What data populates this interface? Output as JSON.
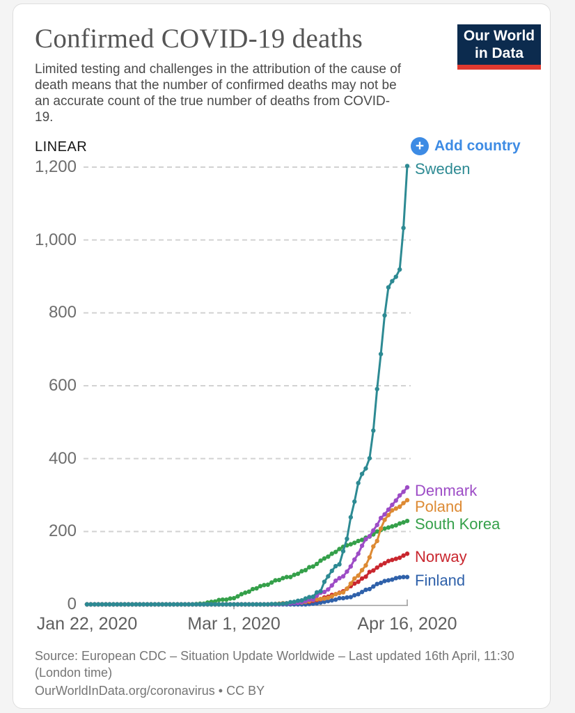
{
  "header": {
    "title": "Confirmed COVID-19 deaths",
    "subtitle": "Limited testing and challenges in the attribution of the cause of death means that the number of confirmed deaths may not be an accurate count of the true number of deaths from COVID-19.",
    "logo": {
      "line1": "Our World",
      "line2": "in Data",
      "navy_color": "#0c2b4e",
      "red_color": "#e0392f"
    }
  },
  "controls": {
    "scale_label": "LINEAR",
    "add_country_label": "Add country",
    "plus_icon": "+",
    "accent_color": "#3d8be4"
  },
  "chart_data": {
    "type": "line",
    "title": "Confirmed COVID-19 deaths",
    "xlabel": "",
    "ylabel": "",
    "x_start_date": "Jan 22, 2020",
    "x_end_date": "Apr 16, 2020",
    "x_tick_labels": [
      "Jan 22, 2020",
      "Mar 1, 2020",
      "Apr 16, 2020"
    ],
    "x_tick_days": [
      0,
      39,
      85
    ],
    "days_total": 85,
    "ylim": [
      0,
      1200
    ],
    "y_ticks": [
      0,
      200,
      400,
      600,
      800,
      1000,
      1200
    ],
    "y_tick_labels": [
      "0",
      "200",
      "400",
      "600",
      "800",
      "1,000",
      "1,200"
    ],
    "grid": true,
    "gridline_color": "#d2d2d2",
    "axis_color": "#9a9a9a",
    "legend_position": "right-end-labels",
    "series": [
      {
        "name": "Sweden",
        "color": "#2d8a93",
        "final_value": 1203,
        "values": [
          0,
          0,
          0,
          0,
          0,
          0,
          0,
          0,
          0,
          0,
          0,
          0,
          0,
          0,
          0,
          0,
          0,
          0,
          0,
          0,
          0,
          0,
          0,
          0,
          0,
          0,
          0,
          0,
          0,
          0,
          0,
          0,
          0,
          0,
          0,
          0,
          0,
          0,
          0,
          0,
          0,
          0,
          0,
          0,
          0,
          0,
          0,
          0,
          0,
          1,
          1,
          1,
          2,
          3,
          6,
          7,
          10,
          11,
          16,
          20,
          21,
          33,
          36,
          62,
          77,
          92,
          105,
          110,
          146,
          180,
          239,
          282,
          333,
          358,
          373,
          401,
          477,
          591,
          687,
          793,
          870,
          887,
          899,
          919,
          1033,
          1203
        ]
      },
      {
        "name": "Denmark",
        "color": "#9d4cc6",
        "final_value": 321,
        "values": [
          0,
          0,
          0,
          0,
          0,
          0,
          0,
          0,
          0,
          0,
          0,
          0,
          0,
          0,
          0,
          0,
          0,
          0,
          0,
          0,
          0,
          0,
          0,
          0,
          0,
          0,
          0,
          0,
          0,
          0,
          0,
          0,
          0,
          0,
          0,
          0,
          0,
          0,
          0,
          0,
          0,
          0,
          0,
          0,
          0,
          0,
          0,
          0,
          0,
          0,
          0,
          0,
          1,
          2,
          3,
          4,
          4,
          6,
          9,
          13,
          13,
          24,
          32,
          34,
          41,
          52,
          65,
          72,
          77,
          90,
          104,
          123,
          139,
          161,
          179,
          187,
          203,
          218,
          237,
          247,
          260,
          273,
          285,
          299,
          309,
          321
        ]
      },
      {
        "name": "Poland",
        "color": "#dd8a33",
        "final_value": 286,
        "values": [
          0,
          0,
          0,
          0,
          0,
          0,
          0,
          0,
          0,
          0,
          0,
          0,
          0,
          0,
          0,
          0,
          0,
          0,
          0,
          0,
          0,
          0,
          0,
          0,
          0,
          0,
          0,
          0,
          0,
          0,
          0,
          0,
          0,
          0,
          0,
          0,
          0,
          0,
          0,
          0,
          0,
          0,
          0,
          0,
          0,
          0,
          0,
          0,
          0,
          0,
          1,
          2,
          3,
          3,
          4,
          5,
          5,
          5,
          7,
          9,
          12,
          14,
          15,
          16,
          18,
          22,
          28,
          31,
          33,
          43,
          57,
          71,
          79,
          94,
          107,
          129,
          159,
          174,
          208,
          232,
          245,
          258,
          263,
          268,
          278,
          286
        ]
      },
      {
        "name": "South Korea",
        "color": "#35a04a",
        "final_value": 229,
        "values": [
          0,
          0,
          0,
          0,
          0,
          0,
          0,
          0,
          0,
          0,
          0,
          0,
          0,
          0,
          0,
          0,
          0,
          0,
          0,
          0,
          0,
          0,
          0,
          0,
          0,
          0,
          0,
          0,
          0,
          1,
          2,
          2,
          5,
          7,
          8,
          12,
          13,
          13,
          16,
          17,
          22,
          28,
          32,
          35,
          42,
          44,
          50,
          53,
          54,
          60,
          66,
          67,
          72,
          75,
          75,
          81,
          84,
          91,
          94,
          102,
          104,
          111,
          120,
          126,
          131,
          139,
          144,
          152,
          158,
          162,
          165,
          169,
          174,
          177,
          183,
          186,
          192,
          200,
          204,
          208,
          211,
          214,
          217,
          222,
          225,
          229
        ]
      },
      {
        "name": "Norway",
        "color": "#c9262e",
        "final_value": 139,
        "values": [
          0,
          0,
          0,
          0,
          0,
          0,
          0,
          0,
          0,
          0,
          0,
          0,
          0,
          0,
          0,
          0,
          0,
          0,
          0,
          0,
          0,
          0,
          0,
          0,
          0,
          0,
          0,
          0,
          0,
          0,
          0,
          0,
          0,
          0,
          0,
          0,
          0,
          0,
          0,
          0,
          0,
          0,
          0,
          0,
          0,
          0,
          0,
          0,
          0,
          0,
          1,
          1,
          3,
          3,
          3,
          5,
          6,
          7,
          7,
          7,
          10,
          12,
          14,
          19,
          21,
          26,
          28,
          32,
          36,
          43,
          50,
          57,
          62,
          71,
          76,
          89,
          93,
          101,
          108,
          113,
          119,
          122,
          125,
          128,
          134,
          139
        ]
      },
      {
        "name": "Finland",
        "color": "#2f61aa",
        "final_value": 75,
        "values": [
          0,
          0,
          0,
          0,
          0,
          0,
          0,
          0,
          0,
          0,
          0,
          0,
          0,
          0,
          0,
          0,
          0,
          0,
          0,
          0,
          0,
          0,
          0,
          0,
          0,
          0,
          0,
          0,
          0,
          0,
          0,
          0,
          0,
          0,
          0,
          0,
          0,
          0,
          0,
          0,
          0,
          0,
          0,
          0,
          0,
          0,
          0,
          0,
          0,
          0,
          0,
          0,
          0,
          0,
          0,
          0,
          0,
          0,
          0,
          1,
          2,
          3,
          5,
          7,
          9,
          11,
          13,
          17,
          17,
          19,
          20,
          25,
          28,
          34,
          40,
          42,
          49,
          56,
          59,
          64,
          66,
          68,
          72,
          74,
          75,
          75
        ]
      }
    ]
  },
  "footer": {
    "source_line": "Source: European CDC – Situation Update Worldwide – Last updated 16th April, 11:30 (London time)",
    "credit_line": "OurWorldInData.org/coronavirus • CC BY"
  }
}
